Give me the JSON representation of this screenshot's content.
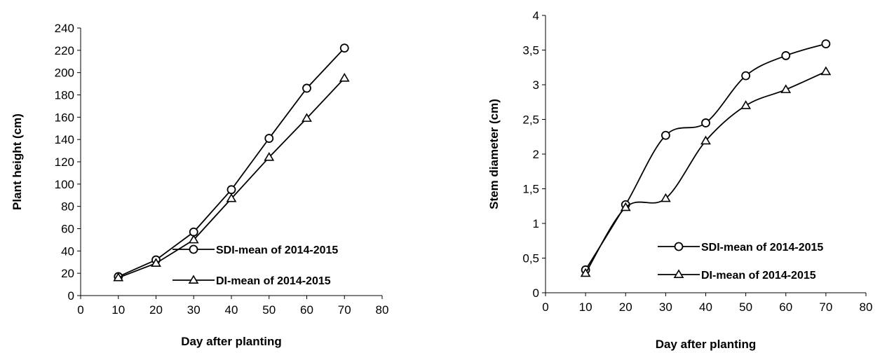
{
  "chart_data": [
    {
      "type": "line",
      "x": [
        10,
        20,
        30,
        40,
        50,
        60,
        70
      ],
      "series": [
        {
          "name": "SDI-mean of 2014-2015",
          "marker": "circle",
          "values": [
            17,
            32,
            57,
            95,
            141,
            186,
            222
          ]
        },
        {
          "name": "DI-mean of 2014-2015",
          "marker": "triangle",
          "values": [
            16,
            29,
            50,
            87,
            124,
            159,
            195
          ]
        }
      ],
      "xlabel": "Day after planting",
      "ylabel": "Plant height (cm)",
      "xlim": [
        0,
        80
      ],
      "ylim": [
        0,
        240
      ],
      "xticks": [
        "0",
        "10",
        "20",
        "30",
        "40",
        "50",
        "60",
        "70",
        "80"
      ],
      "yticks": [
        "0",
        "20",
        "40",
        "60",
        "80",
        "100",
        "120",
        "140",
        "160",
        "180",
        "200",
        "220",
        "240"
      ],
      "smooth": false,
      "grid": false,
      "legend_position": "bottom-right",
      "color": "#000000"
    },
    {
      "type": "line",
      "x": [
        10,
        20,
        30,
        40,
        50,
        60,
        70
      ],
      "series": [
        {
          "name": "SDI-mean of 2014-2015",
          "marker": "circle",
          "values": [
            0.33,
            1.27,
            2.27,
            2.45,
            3.13,
            3.42,
            3.59
          ]
        },
        {
          "name": "DI-mean of 2014-2015",
          "marker": "triangle",
          "values": [
            0.28,
            1.23,
            1.36,
            2.19,
            2.7,
            2.93,
            3.19
          ]
        }
      ],
      "xlabel": "Day after planting",
      "ylabel": "Stem diameter (cm)",
      "xlim": [
        0,
        80
      ],
      "ylim": [
        0,
        4
      ],
      "xticks": [
        "0",
        "10",
        "20",
        "30",
        "40",
        "50",
        "60",
        "70",
        "80"
      ],
      "yticks": [
        "0",
        "0,5",
        "1",
        "1,5",
        "2",
        "2,5",
        "3",
        "3,5",
        "4"
      ],
      "smooth": true,
      "grid": false,
      "legend_position": "bottom-right",
      "color": "#000000"
    }
  ]
}
